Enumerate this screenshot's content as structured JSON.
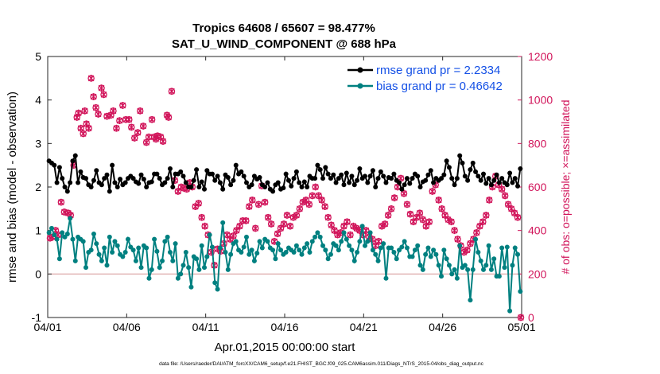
{
  "chart_data": {
    "type": "line",
    "title": "Tropics 64608 / 65607 = 98.477%",
    "subtitle": "SAT_U_WIND_COMPONENT @ 688 hPa",
    "xlabel": "Apr.01,2015 00:00:00 start",
    "ylabel": "rmse and bias (model - observation)",
    "ylabel_right": "# of obs: o=possible; ×=assimilated",
    "footnote": "data file: /Users/raeder/DAI/ATM_forcXX/CAM6_setup/f.e21.FHIST_BGC.f09_025.CAM6assim.011/Diags_NTrS_2015-04/obs_diag_output.nc",
    "xlim": [
      0,
      30
    ],
    "ylim": [
      -1,
      5
    ],
    "ylim_right": [
      0,
      1200
    ],
    "x_tick_labels": [
      "04/01",
      "04/06",
      "04/11",
      "04/16",
      "04/21",
      "04/26",
      "05/01"
    ],
    "y_tick_labels": [
      "-1",
      "0",
      "1",
      "2",
      "3",
      "4",
      "5"
    ],
    "y_right_tick_labels": [
      "0",
      "200",
      "400",
      "600",
      "800",
      "1000",
      "1200"
    ],
    "legend_position": "top-right",
    "zero_line": 0,
    "series": [
      {
        "name": "rmse grand pr = 2.2334",
        "color": "#000000",
        "axis": "left",
        "values": [
          2.6,
          2.55,
          2.5,
          2.1,
          2.45,
          2.2,
          2.0,
          1.9,
          2.1,
          2.6,
          2.72,
          2.1,
          2.35,
          2.22,
          2.2,
          2.05,
          2.0,
          2.15,
          2.38,
          2.1,
          2.05,
          2.2,
          2.28,
          1.9,
          2.5,
          2.1,
          2.0,
          2.18,
          2.05,
          2.1,
          2.2,
          2.25,
          2.2,
          2.12,
          2.08,
          2.28,
          2.18,
          2.0,
          2.1,
          2.12,
          2.3,
          2.3,
          2.2,
          2.05,
          2.1,
          2.2,
          2.42,
          2.0,
          2.3,
          2.3,
          2.35,
          2.25,
          2.1,
          2.0,
          2.0,
          2.15,
          2.4,
          2.0,
          2.12,
          1.95,
          2.38,
          2.3,
          2.3,
          2.15,
          2.25,
          2.1,
          1.95,
          2.28,
          2.22,
          2.05,
          2.15,
          2.5,
          2.3,
          2.35,
          2.25,
          2.1,
          2.0,
          2.05,
          2.25,
          2.18,
          2.22,
          2.05,
          2.0,
          2.1,
          1.95,
          1.9,
          2.05,
          2.1,
          1.95,
          1.98,
          2.3,
          2.15,
          2.02,
          2.2,
          2.35,
          2.1,
          2.0,
          2.12,
          2.0,
          2.25,
          2.2,
          2.2,
          2.5,
          2.4,
          2.2,
          2.45,
          2.3,
          2.2,
          2.28,
          2.1,
          2.2,
          2.28,
          2.05,
          2.32,
          2.1,
          2.25,
          2.05,
          2.15,
          2.42,
          2.2,
          2.25,
          2.1,
          2.25,
          2.38,
          2.0,
          2.2,
          2.35,
          2.25,
          2.1,
          2.22,
          2.2,
          2.3,
          2.15,
          2.1,
          1.95,
          2.05,
          2.2,
          2.08,
          2.2,
          2.3,
          2.25,
          2.0,
          2.12,
          2.15,
          2.28,
          2.38,
          2.1,
          2.2,
          2.15,
          2.2,
          2.28,
          2.6,
          2.45,
          2.2,
          2.05,
          2.2,
          2.72,
          2.55,
          2.25,
          2.15,
          2.4,
          2.55,
          2.35,
          2.25,
          2.15,
          2.3,
          2.08,
          2.2,
          2.05,
          2.15,
          2.28,
          2.1,
          2.2,
          2.1,
          2.05,
          2.32,
          2.1,
          2.2,
          2.02,
          2.42
        ]
      },
      {
        "name": "bias grand pr = 0.46642",
        "color": "#008080",
        "axis": "left",
        "values": [
          0.95,
          1.05,
          0.9,
          0.8,
          0.35,
          0.95,
          0.85,
          0.92,
          1.28,
          0.8,
          0.3,
          0.85,
          0.8,
          0.75,
          0.15,
          0.5,
          0.55,
          0.92,
          0.7,
          0.45,
          0.3,
          0.6,
          0.2,
          0.85,
          0.5,
          0.75,
          0.65,
          0.45,
          0.4,
          0.5,
          0.8,
          0.62,
          0.55,
          0.3,
          0.6,
          0.15,
          0.65,
          0.6,
          -0.1,
          0.1,
          0.8,
          0.52,
          0.15,
          0.3,
          0.75,
          0.85,
          0.5,
          0.3,
          0.7,
          -0.1,
          0.0,
          0.2,
          0.5,
          0.15,
          -0.3,
          0.4,
          0.35,
          0.1,
          0.65,
          0.15,
          0.4,
          0.9,
          0.62,
          -0.2,
          -0.35,
          0.6,
          1.18,
          0.5,
          0.1,
          0.45,
          0.7,
          0.75,
          0.55,
          0.5,
          0.62,
          0.85,
          0.45,
          0.55,
          0.3,
          0.48,
          0.75,
          0.6,
          0.8,
          0.75,
          0.6,
          0.55,
          0.35,
          0.7,
          0.55,
          0.45,
          0.5,
          0.6,
          0.55,
          0.5,
          0.65,
          0.55,
          0.45,
          0.6,
          0.7,
          0.5,
          0.75,
          0.85,
          0.95,
          0.85,
          0.65,
          0.55,
          0.35,
          0.45,
          0.7,
          0.65,
          0.55,
          0.75,
          0.95,
          0.8,
          0.65,
          0.55,
          0.3,
          0.5,
          0.75,
          1.1,
          0.65,
          0.75,
          0.95,
          0.55,
          0.45,
          0.3,
          0.6,
          0.7,
          -0.1,
          0.6,
          0.6,
          0.5,
          0.35,
          0.55,
          0.62,
          0.75,
          0.6,
          0.4,
          0.4,
          0.55,
          0.65,
          0.2,
          0.1,
          0.45,
          0.6,
          0.4,
          0.55,
          0.45,
          0.2,
          -0.05,
          0.55,
          0.35,
          0.2,
          0.0,
          0.1,
          -0.1,
          0.65,
          0.15,
          0.2,
          0.1,
          -0.6,
          0.1,
          0.8,
          0.5,
          0.3,
          0.1,
          0.2,
          0.65,
          0.1,
          0.35,
          -0.05,
          -0.05,
          0.6,
          0.15,
          0.62,
          -0.85,
          0.2,
          0.6,
          0.45,
          -0.4
        ]
      }
    ],
    "obs_counts": {
      "axis": "right",
      "color": "#d1145a",
      "points": [
        [
          0.15,
          365
        ],
        [
          0.3,
          370
        ],
        [
          0.5,
          400
        ],
        [
          0.65,
          380
        ],
        [
          0.85,
          530
        ],
        [
          1.05,
          485
        ],
        [
          1.3,
          480
        ],
        [
          1.45,
          470
        ],
        [
          1.65,
          700
        ],
        [
          1.85,
          920
        ],
        [
          1.95,
          940
        ],
        [
          2.1,
          870
        ],
        [
          2.25,
          845
        ],
        [
          2.35,
          950
        ],
        [
          2.45,
          890
        ],
        [
          2.6,
          870
        ],
        [
          2.75,
          1100
        ],
        [
          2.9,
          1015
        ],
        [
          3.05,
          965
        ],
        [
          3.2,
          935
        ],
        [
          3.4,
          1055
        ],
        [
          3.55,
          1025
        ],
        [
          3.75,
          925
        ],
        [
          4.0,
          930
        ],
        [
          4.15,
          950
        ],
        [
          4.35,
          870
        ],
        [
          4.55,
          905
        ],
        [
          4.75,
          975
        ],
        [
          4.95,
          910
        ],
        [
          5.15,
          910
        ],
        [
          5.3,
          875
        ],
        [
          5.5,
          825
        ],
        [
          5.7,
          850
        ],
        [
          5.85,
          950
        ],
        [
          6.05,
          880
        ],
        [
          6.25,
          805
        ],
        [
          6.4,
          830
        ],
        [
          6.6,
          910
        ],
        [
          6.75,
          830
        ],
        [
          6.85,
          820
        ],
        [
          6.95,
          835
        ],
        [
          7.15,
          830
        ],
        [
          7.3,
          810
        ],
        [
          7.55,
          930
        ],
        [
          7.65,
          920
        ],
        [
          7.85,
          1040
        ],
        [
          8.05,
          630
        ],
        [
          8.25,
          580
        ],
        [
          8.45,
          600
        ],
        [
          8.6,
          595
        ],
        [
          8.8,
          590
        ],
        [
          9.0,
          620
        ],
        [
          9.15,
          600
        ],
        [
          9.35,
          510
        ],
        [
          9.55,
          525
        ],
        [
          9.75,
          460
        ],
        [
          9.95,
          420
        ],
        [
          10.15,
          380
        ],
        [
          10.35,
          300
        ],
        [
          10.55,
          240
        ],
        [
          10.75,
          315
        ],
        [
          10.95,
          305
        ],
        [
          11.15,
          340
        ],
        [
          11.35,
          380
        ],
        [
          11.55,
          360
        ],
        [
          11.75,
          375
        ],
        [
          11.95,
          400
        ],
        [
          12.15,
          420
        ],
        [
          12.35,
          445
        ],
        [
          12.55,
          445
        ],
        [
          12.75,
          510
        ],
        [
          12.95,
          540
        ],
        [
          13.15,
          410
        ],
        [
          13.35,
          520
        ],
        [
          13.55,
          605
        ],
        [
          13.75,
          530
        ],
        [
          13.95,
          460
        ],
        [
          14.15,
          430
        ],
        [
          14.35,
          350
        ],
        [
          14.55,
          385
        ],
        [
          14.75,
          410
        ],
        [
          14.95,
          430
        ],
        [
          15.15,
          470
        ],
        [
          15.35,
          420
        ],
        [
          15.55,
          460
        ],
        [
          15.75,
          470
        ],
        [
          15.95,
          500
        ],
        [
          16.15,
          530
        ],
        [
          16.35,
          540
        ],
        [
          16.55,
          520
        ],
        [
          16.75,
          560
        ],
        [
          16.95,
          600
        ],
        [
          17.15,
          560
        ],
        [
          17.35,
          540
        ],
        [
          17.55,
          510
        ],
        [
          17.75,
          460
        ],
        [
          17.95,
          425
        ],
        [
          18.15,
          400
        ],
        [
          18.35,
          380
        ],
        [
          18.55,
          390
        ],
        [
          18.75,
          420
        ],
        [
          18.95,
          440
        ],
        [
          19.15,
          380
        ],
        [
          19.35,
          420
        ],
        [
          19.55,
          410
        ],
        [
          19.75,
          400
        ],
        [
          19.95,
          380
        ],
        [
          20.15,
          400
        ],
        [
          20.35,
          370
        ],
        [
          20.55,
          360
        ],
        [
          20.75,
          330
        ],
        [
          20.95,
          350
        ],
        [
          21.15,
          420
        ],
        [
          21.35,
          430
        ],
        [
          21.55,
          470
        ],
        [
          21.75,
          500
        ],
        [
          21.95,
          550
        ],
        [
          22.15,
          600
        ],
        [
          22.35,
          640
        ],
        [
          22.55,
          570
        ],
        [
          22.75,
          520
        ],
        [
          22.95,
          475
        ],
        [
          23.15,
          440
        ],
        [
          23.35,
          460
        ],
        [
          23.55,
          480
        ],
        [
          23.75,
          450
        ],
        [
          23.95,
          420
        ],
        [
          24.15,
          440
        ],
        [
          24.35,
          580
        ],
        [
          24.55,
          610
        ],
        [
          24.75,
          540
        ],
        [
          24.95,
          500
        ],
        [
          25.15,
          470
        ],
        [
          25.35,
          450
        ],
        [
          25.55,
          440
        ],
        [
          25.75,
          400
        ],
        [
          25.95,
          360
        ],
        [
          26.15,
          330
        ],
        [
          26.35,
          300
        ],
        [
          26.55,
          310
        ],
        [
          26.75,
          340
        ],
        [
          26.95,
          360
        ],
        [
          27.15,
          390
        ],
        [
          27.35,
          420
        ],
        [
          27.55,
          440
        ],
        [
          27.75,
          470
        ],
        [
          27.95,
          540
        ],
        [
          28.15,
          600
        ],
        [
          28.35,
          650
        ],
        [
          28.55,
          610
        ],
        [
          28.75,
          590
        ],
        [
          28.95,
          560
        ],
        [
          29.15,
          520
        ],
        [
          29.35,
          500
        ],
        [
          29.55,
          480
        ],
        [
          29.75,
          460
        ],
        [
          29.95,
          0
        ]
      ]
    }
  }
}
